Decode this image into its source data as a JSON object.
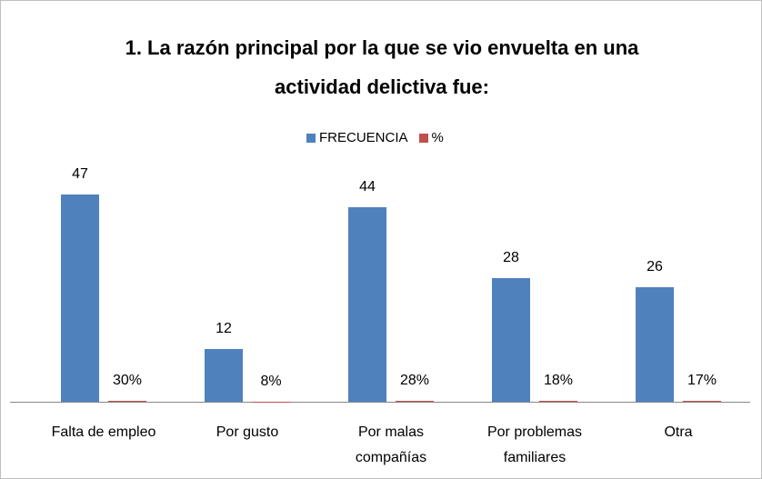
{
  "chart_data": {
    "type": "bar",
    "title": "1. La razón principal por la que se vio envuelta en una actividad delictiva fue:",
    "categories": [
      "Falta de empleo",
      "Por gusto",
      "Por malas compañías",
      "Por problemas familiares",
      "Otra"
    ],
    "series": [
      {
        "name": "FRECUENCIA",
        "color": "#4f81bd",
        "values": [
          47,
          12,
          44,
          28,
          26
        ]
      },
      {
        "name": "%",
        "color": "#c0504d",
        "values": [
          0.3,
          0.08,
          0.28,
          0.18,
          0.17
        ],
        "value_labels": [
          "30%",
          "8%",
          "28%",
          "18%",
          "17%"
        ]
      }
    ],
    "ylim": [
      0,
      50
    ],
    "legend": "top"
  }
}
